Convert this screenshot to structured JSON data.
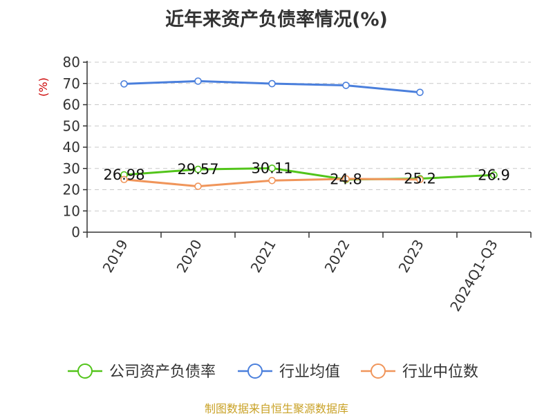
{
  "title": "近年来资产负债率情况(%)",
  "source_note": "制图数据来自恒生聚源数据库",
  "chart_data": {
    "type": "line",
    "title": "近年来资产负债率情况(%)",
    "ylabel": "(%)",
    "xlabel": "",
    "ylim": [
      0,
      80
    ],
    "yticks": [
      0,
      10,
      20,
      30,
      40,
      50,
      60,
      70,
      80
    ],
    "grid": true,
    "legend_position": "bottom",
    "categories": [
      "2019",
      "2020",
      "2021",
      "2022",
      "2023",
      "2024Q1-Q3"
    ],
    "series": [
      {
        "name": "公司资产负债率",
        "color": "#52c41a",
        "values": [
          26.98,
          29.57,
          30.11,
          24.8,
          25.2,
          26.9
        ],
        "labels": [
          "26.98",
          "29.57",
          "30.11",
          "24.8",
          "25.2",
          "26.9"
        ]
      },
      {
        "name": "行业均值",
        "color": "#4a7fdc",
        "values": [
          69.8,
          71.1,
          69.9,
          69.1,
          65.8,
          null
        ]
      },
      {
        "name": "行业中位数",
        "color": "#f0955a",
        "values": [
          24.8,
          21.6,
          24.3,
          25.1,
          24.8,
          null
        ]
      }
    ]
  }
}
